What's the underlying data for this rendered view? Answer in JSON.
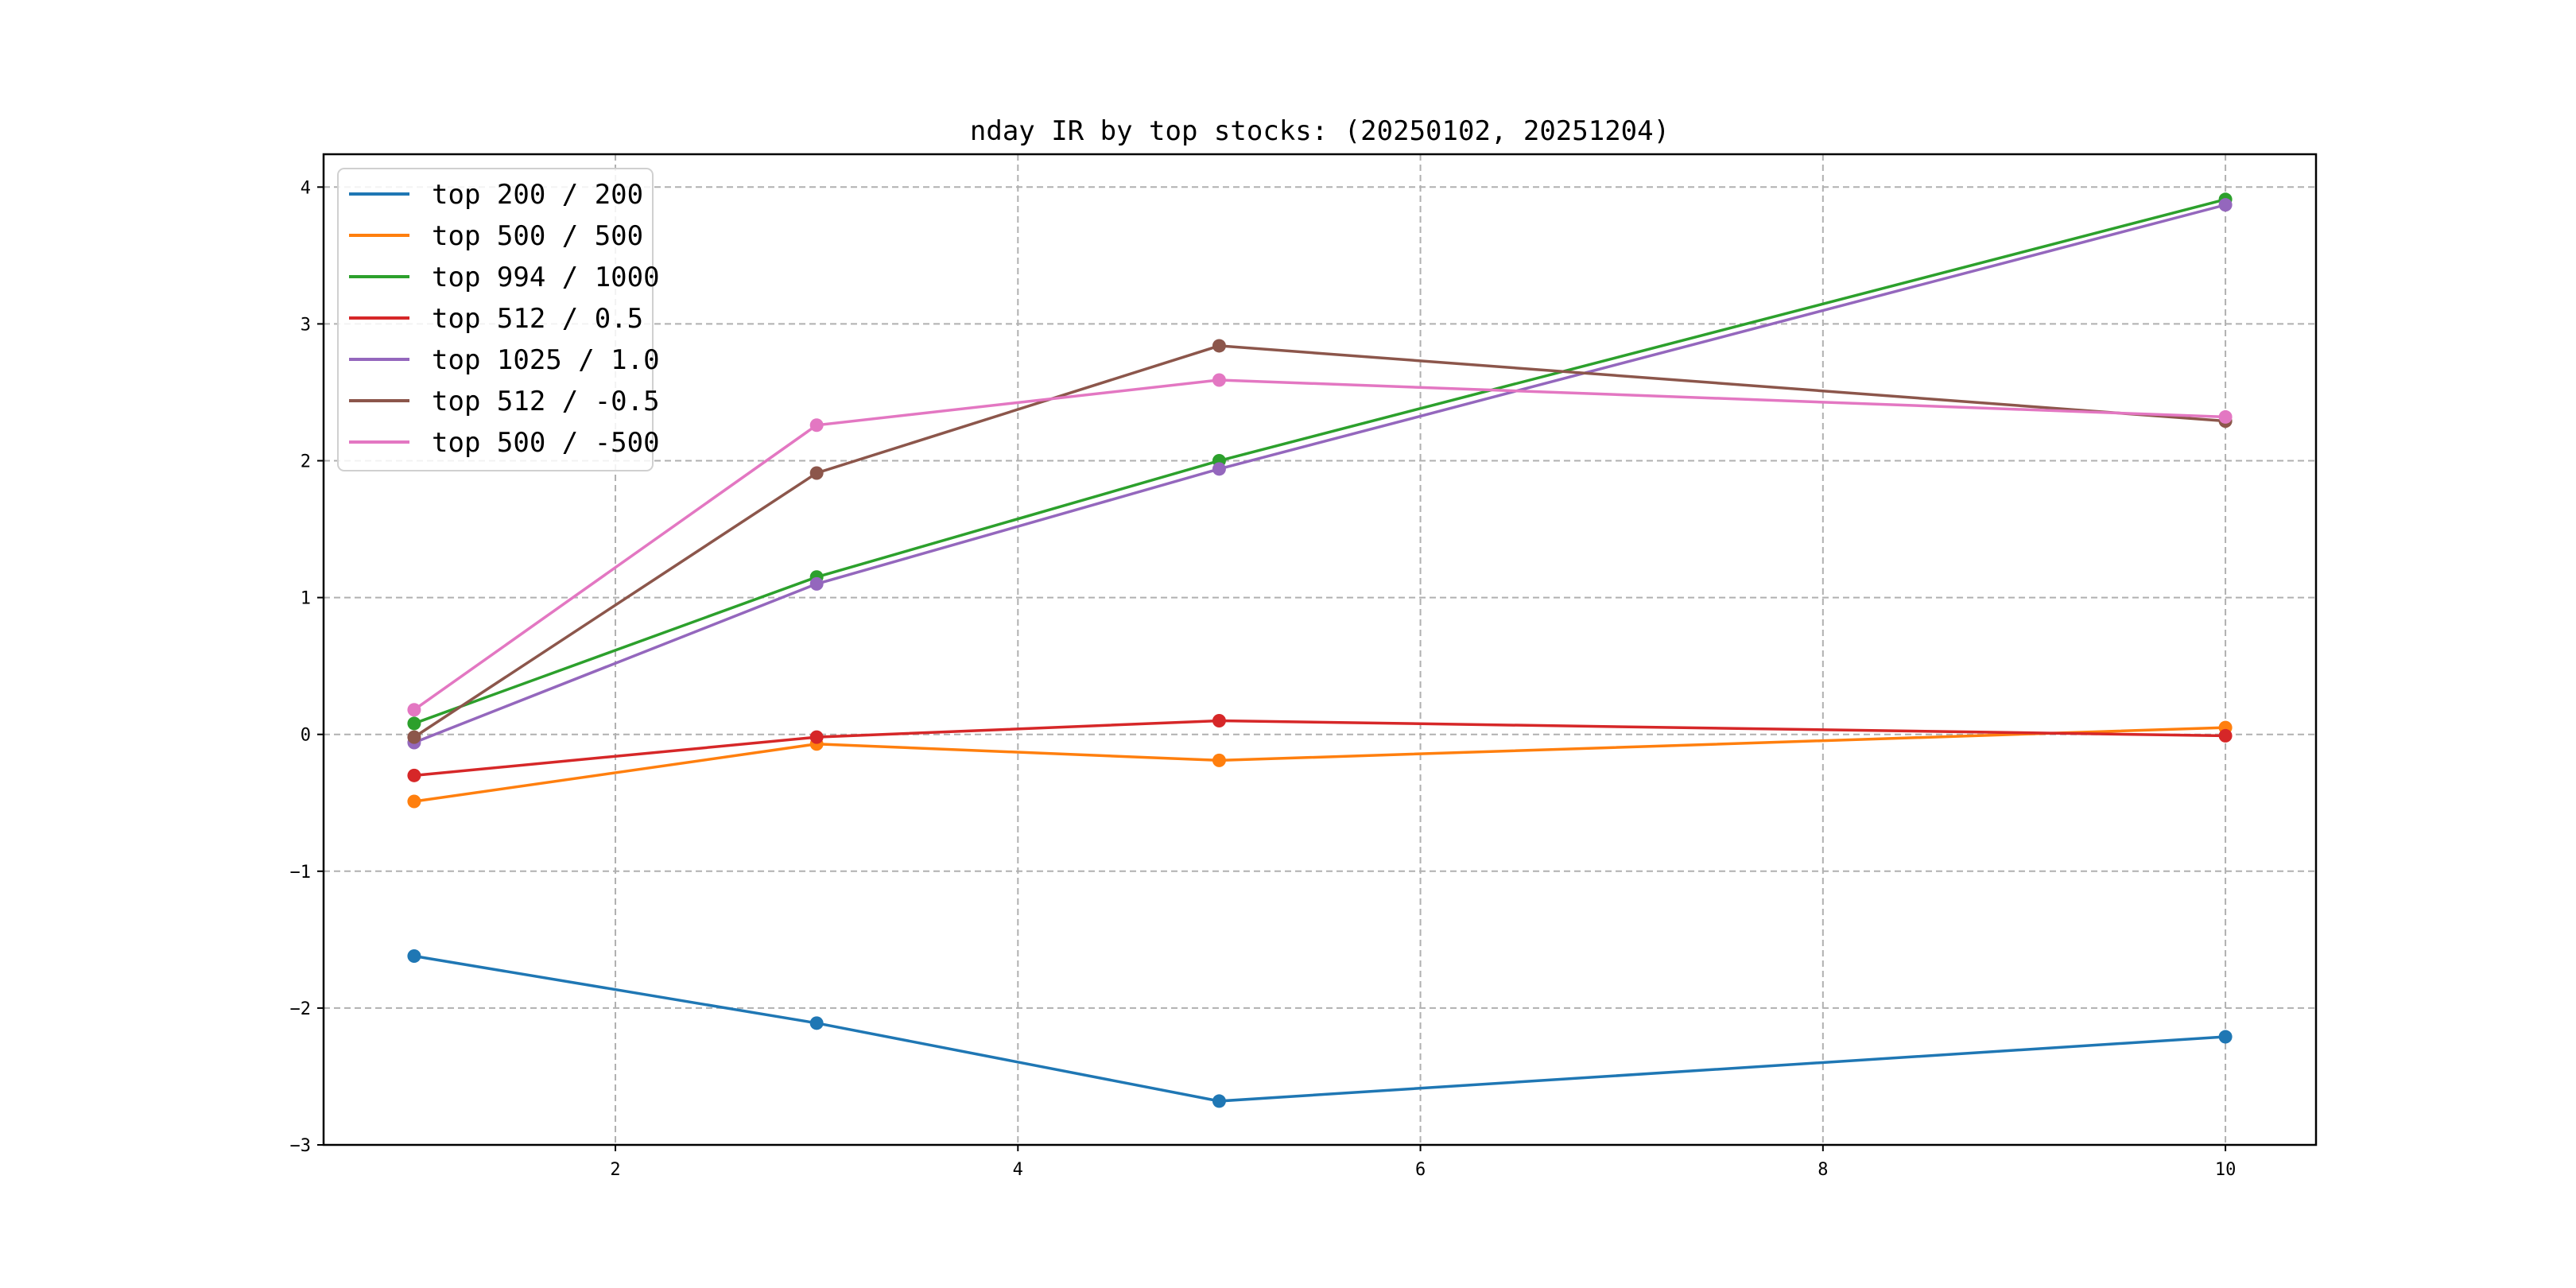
{
  "chart_data": {
    "type": "line",
    "title": "nday IR by top stocks: (20250102, 20251204)",
    "xlabel": "",
    "ylabel": "",
    "xlim": [
      0.55,
      10.45
    ],
    "ylim": [
      -3.0,
      4.24
    ],
    "xticks": [
      2,
      4,
      6,
      8,
      10
    ],
    "yticks": [
      -3,
      -2,
      -1,
      0,
      1,
      2,
      3,
      4
    ],
    "xtick_labels": [
      "2",
      "4",
      "6",
      "8",
      "10"
    ],
    "ytick_labels": [
      "−3",
      "−2",
      "−1",
      "0",
      "1",
      "2",
      "3",
      "4"
    ],
    "grid": true,
    "legend_position": "top-left",
    "x": [
      1,
      3,
      5,
      10
    ],
    "series": [
      {
        "name": "top 200 / 200",
        "color": "#1f77b4",
        "values": [
          -1.62,
          -2.11,
          -2.68,
          -2.21
        ]
      },
      {
        "name": "top 500 / 500",
        "color": "#ff7f0e",
        "values": [
          -0.49,
          -0.07,
          -0.19,
          0.05
        ]
      },
      {
        "name": "top 994 / 1000",
        "color": "#2ca02c",
        "values": [
          0.08,
          1.15,
          2.0,
          3.91
        ]
      },
      {
        "name": "top 512 / 0.5",
        "color": "#d62728",
        "values": [
          -0.3,
          -0.02,
          0.1,
          -0.01
        ]
      },
      {
        "name": "top 1025 / 1.0",
        "color": "#9467bd",
        "values": [
          -0.06,
          1.1,
          1.94,
          3.87
        ]
      },
      {
        "name": "top 512 / -0.5",
        "color": "#8c564b",
        "values": [
          -0.02,
          1.91,
          2.84,
          2.29
        ]
      },
      {
        "name": "top 500 / -500",
        "color": "#e377c2",
        "values": [
          0.18,
          2.26,
          2.59,
          2.32
        ]
      }
    ]
  }
}
